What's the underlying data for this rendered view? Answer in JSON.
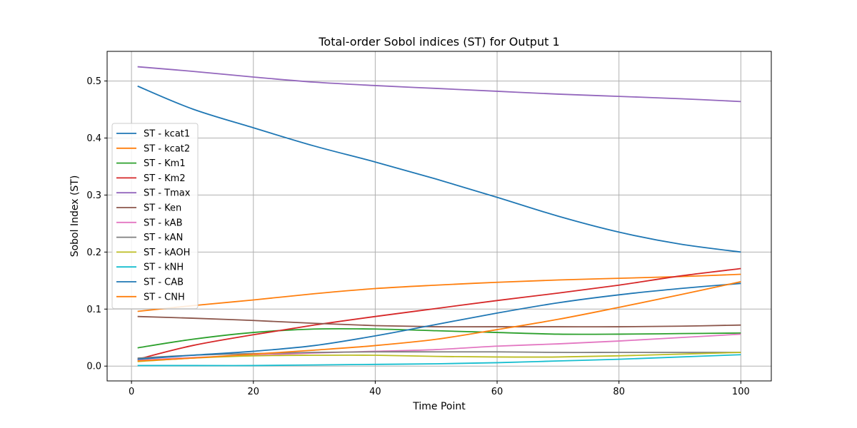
{
  "chart_data": {
    "type": "line",
    "title": "Total-order Sobol indices (ST) for Output 1",
    "xlabel": "Time Point",
    "ylabel": "Sobol Index (ST)",
    "xlim": [
      -4,
      105
    ],
    "ylim": [
      -0.026,
      0.552
    ],
    "xticks": [
      0,
      20,
      40,
      60,
      80,
      100
    ],
    "xtick_labels": [
      "0",
      "20",
      "40",
      "60",
      "80",
      "100"
    ],
    "yticks": [
      0.0,
      0.1,
      0.2,
      0.3,
      0.4,
      0.5
    ],
    "ytick_labels": [
      "0.0",
      "0.1",
      "0.2",
      "0.3",
      "0.4",
      "0.5"
    ],
    "grid": true,
    "legend_position": "left",
    "x": [
      1,
      10,
      20,
      30,
      40,
      50,
      60,
      70,
      80,
      90,
      100
    ],
    "series": [
      {
        "name": "ST - kcat1",
        "color": "#1f77b4",
        "values": [
          0.491,
          0.451,
          0.418,
          0.386,
          0.358,
          0.328,
          0.296,
          0.263,
          0.235,
          0.214,
          0.2
        ]
      },
      {
        "name": "ST - kcat2",
        "color": "#ff7f0e",
        "values": [
          0.096,
          0.106,
          0.116,
          0.127,
          0.136,
          0.142,
          0.147,
          0.151,
          0.154,
          0.157,
          0.161
        ]
      },
      {
        "name": "ST - Km1",
        "color": "#2ca02c",
        "values": [
          0.032,
          0.047,
          0.059,
          0.065,
          0.065,
          0.062,
          0.059,
          0.056,
          0.056,
          0.057,
          0.058
        ]
      },
      {
        "name": "ST - Km2",
        "color": "#d62728",
        "values": [
          0.012,
          0.036,
          0.055,
          0.072,
          0.087,
          0.101,
          0.115,
          0.128,
          0.142,
          0.158,
          0.171
        ]
      },
      {
        "name": "ST - Tmax",
        "color": "#9467bd",
        "values": [
          0.525,
          0.517,
          0.507,
          0.498,
          0.492,
          0.487,
          0.482,
          0.477,
          0.473,
          0.469,
          0.464
        ]
      },
      {
        "name": "ST - Ken",
        "color": "#8c564b",
        "values": [
          0.087,
          0.084,
          0.08,
          0.075,
          0.071,
          0.069,
          0.069,
          0.069,
          0.069,
          0.07,
          0.072
        ]
      },
      {
        "name": "ST - kAB",
        "color": "#e377c2",
        "values": [
          0.01,
          0.015,
          0.019,
          0.023,
          0.026,
          0.029,
          0.035,
          0.039,
          0.044,
          0.05,
          0.056
        ]
      },
      {
        "name": "ST - kAN",
        "color": "#7f7f7f",
        "values": [
          0.014,
          0.019,
          0.022,
          0.024,
          0.025,
          0.025,
          0.025,
          0.024,
          0.024,
          0.024,
          0.024
        ]
      },
      {
        "name": "ST - kAOH",
        "color": "#bcbd22",
        "values": [
          0.008,
          0.014,
          0.018,
          0.019,
          0.019,
          0.017,
          0.016,
          0.016,
          0.018,
          0.021,
          0.024
        ]
      },
      {
        "name": "ST - kNH",
        "color": "#17becf",
        "values": [
          0.001,
          0.001,
          0.001,
          0.002,
          0.003,
          0.004,
          0.006,
          0.009,
          0.012,
          0.016,
          0.02
        ]
      },
      {
        "name": "ST - CAB",
        "color": "#1f77b4",
        "values": [
          0.012,
          0.019,
          0.026,
          0.036,
          0.053,
          0.073,
          0.093,
          0.111,
          0.125,
          0.136,
          0.145
        ]
      },
      {
        "name": "ST - CNH",
        "color": "#ff7f0e",
        "values": [
          0.009,
          0.014,
          0.021,
          0.028,
          0.036,
          0.047,
          0.064,
          0.082,
          0.103,
          0.125,
          0.148
        ]
      }
    ]
  }
}
